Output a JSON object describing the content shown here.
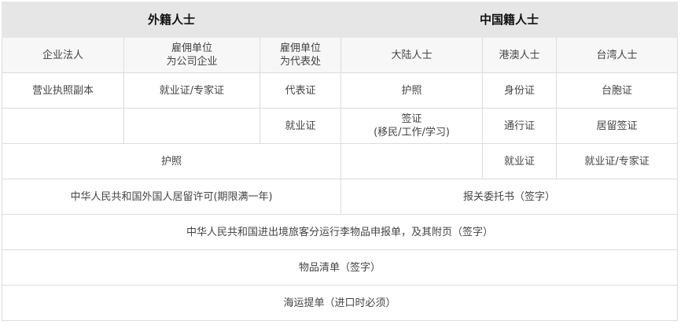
{
  "header": {
    "foreign": "外籍人士",
    "chinese": "中国籍人士"
  },
  "subheader": {
    "corporate": "企业法人",
    "employer_company": [
      "雇佣单位",
      "为公司企业"
    ],
    "employer_office": [
      "雇佣单位",
      "为代表处"
    ],
    "mainland": "大陆人士",
    "hkmo": "港澳人士",
    "taiwan": "台湾人士"
  },
  "rows": {
    "r1": [
      "营业执照副本",
      "就业证/专家证",
      "代表证",
      "护照",
      "身份证",
      "台胞证"
    ],
    "r2": {
      "office": "就业证",
      "mainland": [
        "签证",
        "(移民/工作/学习)"
      ],
      "hkmo": "通行证",
      "taiwan": "居留签证"
    },
    "r3": {
      "foreign": "护照",
      "hkmo": "就业证",
      "taiwan": "就业证/专家证"
    },
    "r4": {
      "foreign": "中华人民共和国外国人居留许可(期限满一年)",
      "chinese": "报关委托书（签字）"
    },
    "r5": "中华人民共和国进出境旅客分运行李物品申报单，及其附页（签字）",
    "r6": "物品清单（签字）",
    "r7": "海运提单（进口时必须）"
  }
}
